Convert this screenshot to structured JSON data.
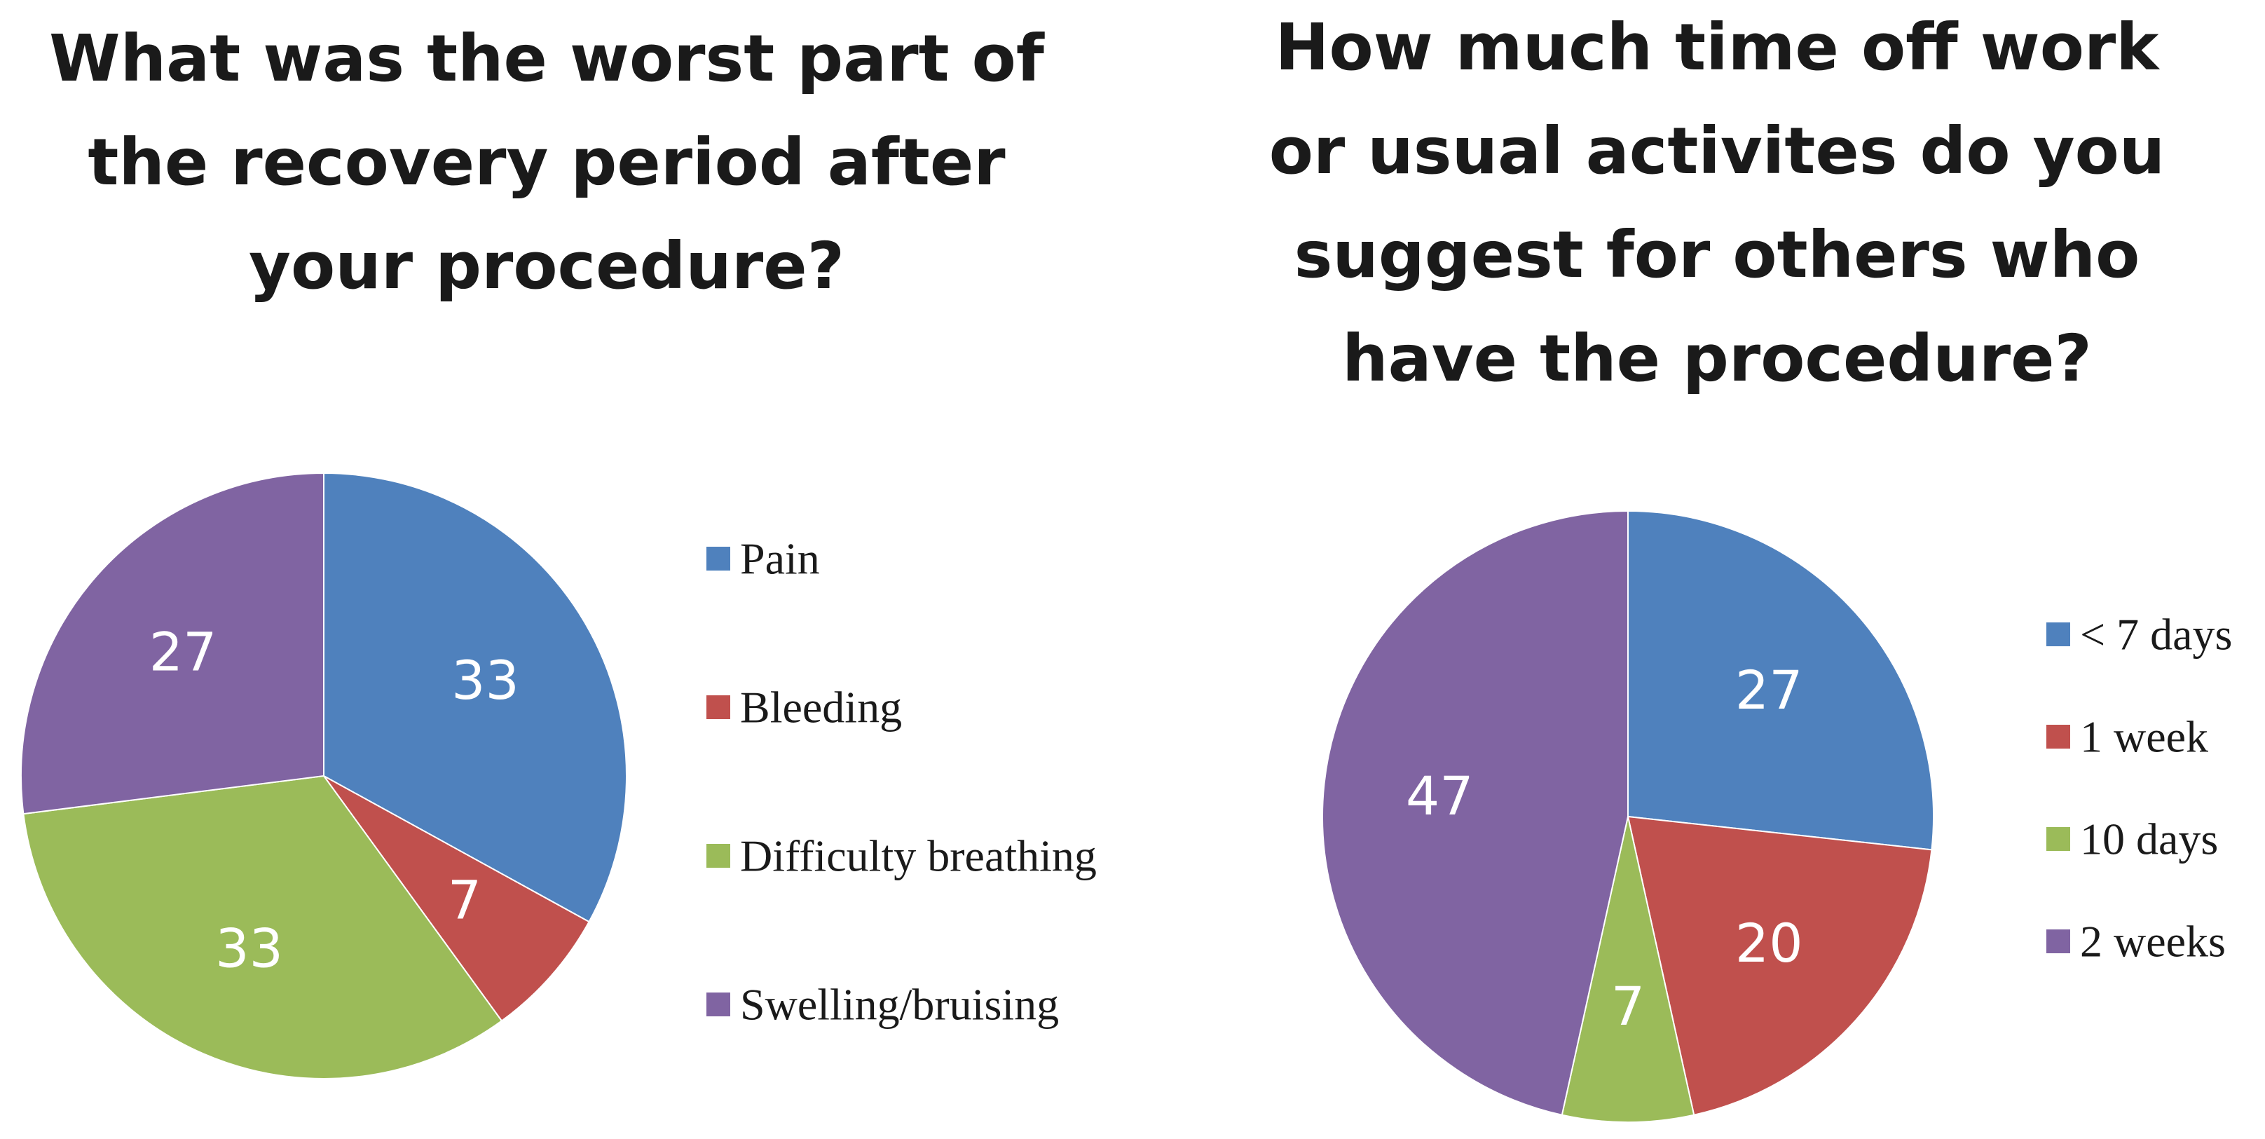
{
  "chart_data": [
    {
      "type": "pie",
      "title": "What was the worst part of the recovery period after your procedure?",
      "categories": [
        "Pain",
        "Bleeding",
        "Difficulty breathing",
        "Swelling/bruising"
      ],
      "values": [
        33,
        7,
        33,
        27
      ],
      "colors": [
        "#4f81bd",
        "#c0504d",
        "#9bbb59",
        "#8064a2"
      ],
      "data_labels": [
        "33",
        "7",
        "33",
        "27"
      ],
      "legend_position": "right"
    },
    {
      "type": "pie",
      "title": "How much time off work or usual activites do you suggest for others who have the procedure?",
      "categories": [
        "< 7 days",
        "1 week",
        "10 days",
        "2 weeks"
      ],
      "values": [
        27,
        20,
        7,
        47
      ],
      "colors": [
        "#4f81bd",
        "#c0504d",
        "#9bbb59",
        "#8064a2"
      ],
      "data_labels": [
        "27",
        "20",
        "7",
        "47"
      ],
      "legend_position": "right"
    }
  ]
}
